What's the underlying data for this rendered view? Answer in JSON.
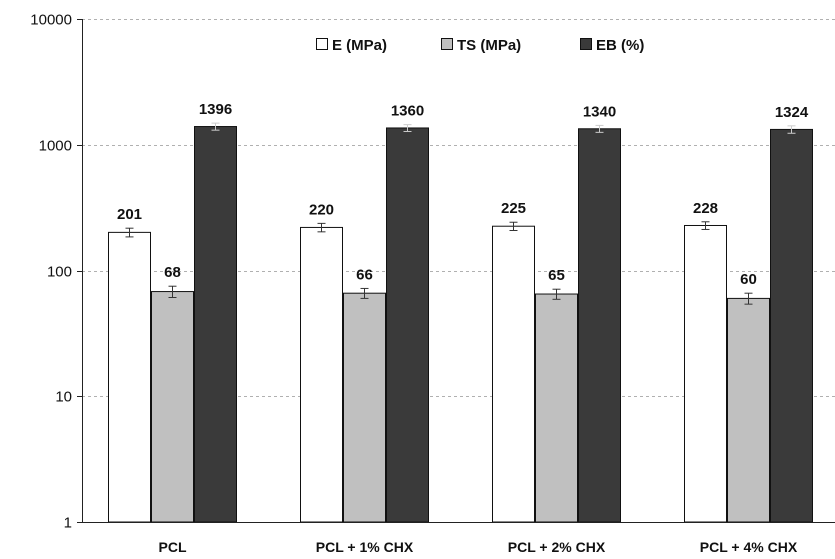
{
  "chart_data": {
    "type": "bar",
    "scale": "log",
    "ylim": [
      1,
      10000
    ],
    "yticks": [
      "1",
      "10",
      "100",
      "1000",
      "10000"
    ],
    "ytick_values": [
      1,
      10,
      100,
      1000,
      10000
    ],
    "grid": "horizontal dashed",
    "legend_position": "top-center",
    "categories": [
      "PCL",
      "PCL + 1% CHX",
      "PCL + 2% CHX",
      "PCL + 4% CHX"
    ],
    "series": [
      {
        "name": "E (MPa)",
        "color": "#ffffff",
        "values": [
          201,
          220,
          225,
          228
        ],
        "labels": [
          "201",
          "220",
          "225",
          "228"
        ],
        "error": [
          16,
          17,
          17,
          16
        ]
      },
      {
        "name": "TS (MPa)",
        "color": "#c0c0c0",
        "values": [
          68,
          66,
          65,
          60
        ],
        "labels": [
          "68",
          "66",
          "65",
          "60"
        ],
        "error": [
          7,
          6,
          6,
          6
        ]
      },
      {
        "name": "EB (%)",
        "color": "#3a3a3a",
        "values": [
          1396,
          1360,
          1340,
          1324
        ],
        "labels": [
          "1396",
          "1360",
          "1340",
          "1324"
        ],
        "error": [
          90,
          85,
          85,
          90
        ]
      }
    ]
  }
}
